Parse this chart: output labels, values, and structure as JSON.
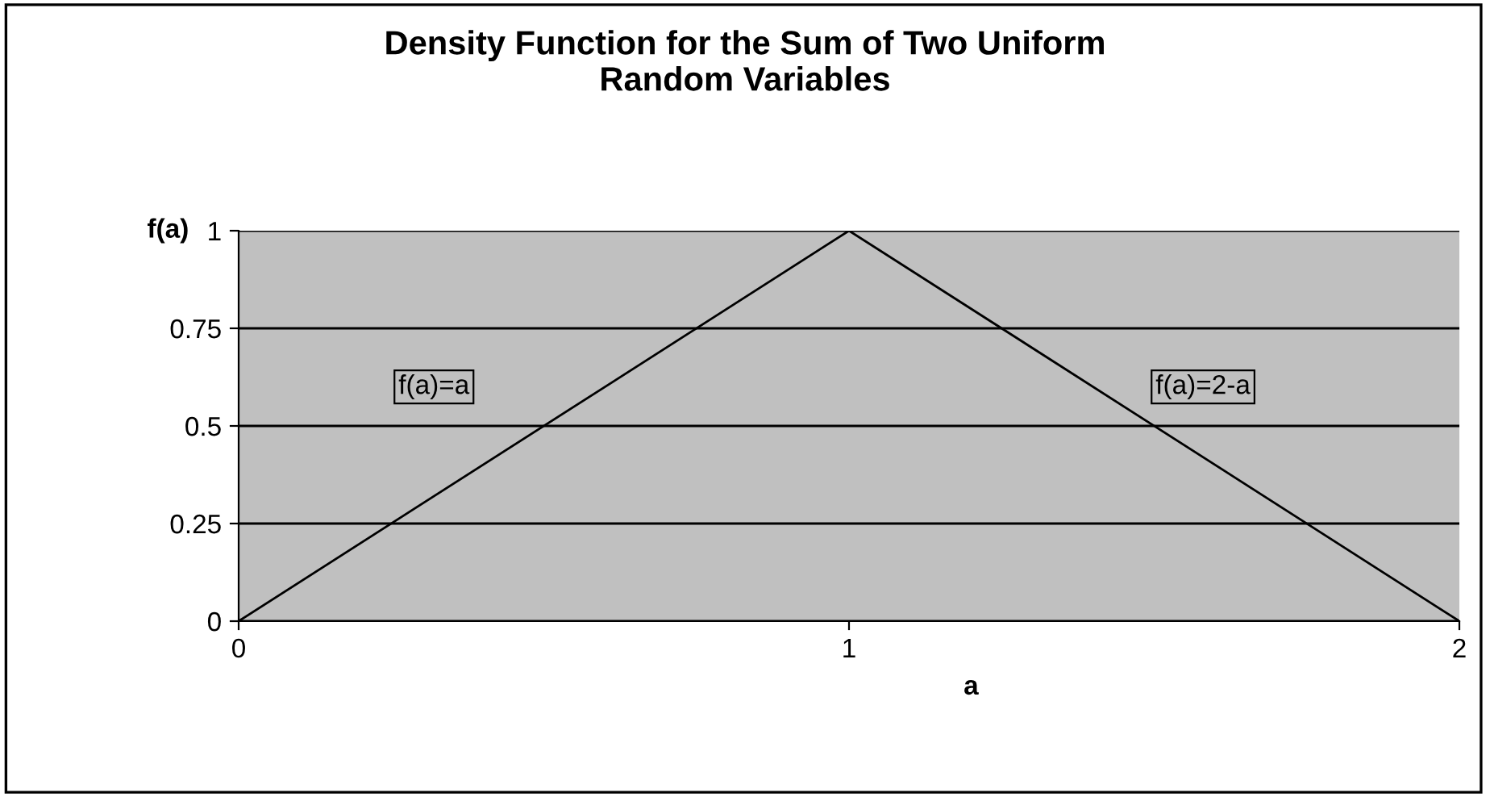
{
  "chart_data": {
    "type": "line",
    "title": "Density Function for the Sum of Two Uniform\nRandom Variables",
    "xlabel": "a",
    "ylabel": "f(a)",
    "x": [
      0,
      1,
      2
    ],
    "series": [
      {
        "color": "#000000",
        "values": [
          0,
          1,
          0
        ]
      }
    ],
    "xlim": [
      0,
      2
    ],
    "xticks": [
      0,
      1,
      2
    ],
    "ylim": [
      0,
      1
    ],
    "yticks": [
      0,
      0.25,
      0.5,
      0.75,
      1
    ],
    "grid": "y",
    "legend": false,
    "marker": "none",
    "line_style": "solid",
    "annotations": [
      "f(a)=a",
      "f(a)=2-a"
    ]
  }
}
